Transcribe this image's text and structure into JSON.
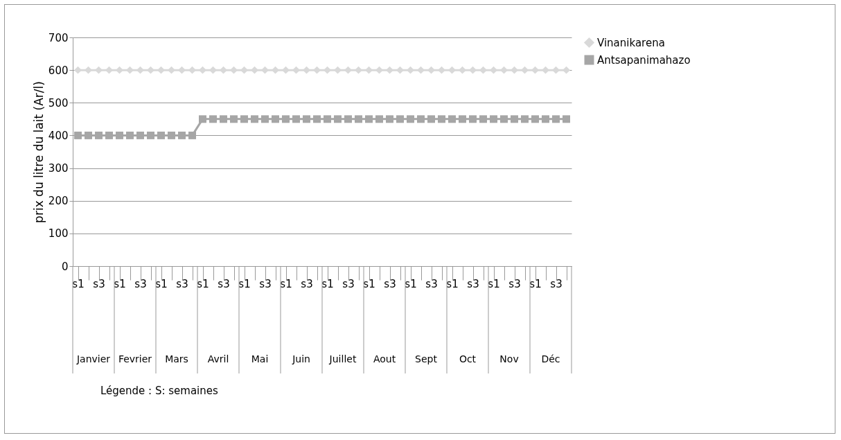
{
  "chart_data": {
    "type": "line",
    "ylabel": "prix du litre du lait (Ar/l)",
    "categories": [
      "s1",
      null,
      "s3",
      null,
      "s1",
      null,
      "s3",
      null,
      "s1",
      null,
      "s3",
      null,
      "s1",
      null,
      "s3",
      null,
      "s1",
      null,
      "s3",
      null,
      "s1",
      null,
      "s3",
      null,
      "s1",
      null,
      "s3",
      null,
      "s1",
      null,
      "s3",
      null,
      "s1",
      null,
      "s3",
      null,
      "s1",
      null,
      "s3",
      null,
      "s1",
      null,
      "s3",
      null,
      "s1",
      null,
      "s3",
      null
    ],
    "series": [
      {
        "name": "Vinanikarena",
        "color": "#d9d9d9",
        "marker": "diamond",
        "values": [
          600,
          600,
          600,
          600,
          600,
          600,
          600,
          600,
          600,
          600,
          600,
          600,
          600,
          600,
          600,
          600,
          600,
          600,
          600,
          600,
          600,
          600,
          600,
          600,
          600,
          600,
          600,
          600,
          600,
          600,
          600,
          600,
          600,
          600,
          600,
          600,
          600,
          600,
          600,
          600,
          600,
          600,
          600,
          600,
          600,
          600,
          600,
          600
        ]
      },
      {
        "name": "Antsapanimahazo",
        "color": "#a6a6a6",
        "marker": "square",
        "values": [
          400,
          400,
          400,
          400,
          400,
          400,
          400,
          400,
          400,
          400,
          400,
          400,
          450,
          450,
          450,
          450,
          450,
          450,
          450,
          450,
          450,
          450,
          450,
          450,
          450,
          450,
          450,
          450,
          450,
          450,
          450,
          450,
          450,
          450,
          450,
          450,
          450,
          450,
          450,
          450,
          450,
          450,
          450,
          450,
          450,
          450,
          450,
          450
        ]
      }
    ],
    "ylim": [
      0,
      700
    ],
    "yticks": [
      0,
      100,
      200,
      300,
      400,
      500,
      600,
      700
    ],
    "grid": "y",
    "legend": "right",
    "annotations": [
      "Janvier",
      "Fevrier",
      "Mars",
      "Avril",
      "Mai",
      "Juin",
      "Juillet",
      "Aout",
      "Sept",
      "Oct",
      "Nov",
      "Déc",
      "Légende : S: semaines"
    ]
  }
}
